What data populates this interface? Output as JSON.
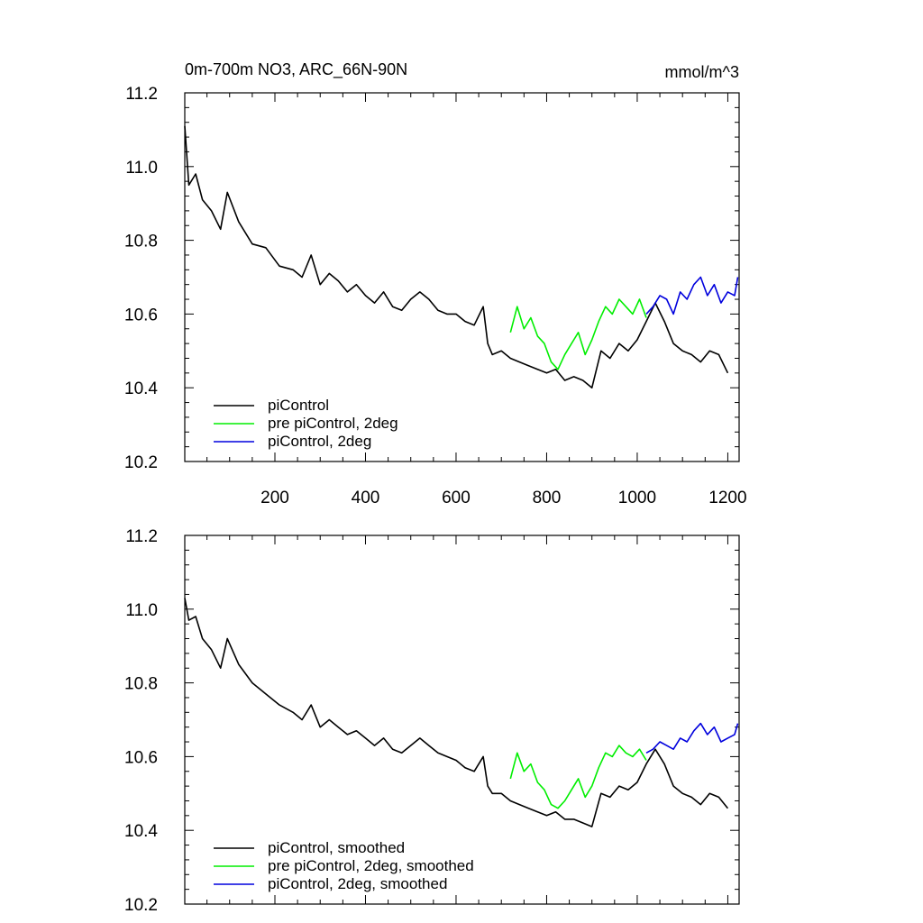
{
  "title_left": "0m-700m NO3, ARC_66N-90N",
  "title_right": "mmol/m^3",
  "colors": {
    "piControl": "#000000",
    "pre_piControl_2deg": "#00ee00",
    "piControl_2deg": "#0000dd",
    "frame": "#000000"
  },
  "chart_data": [
    {
      "type": "line",
      "title": "0m-700m NO3, ARC_66N-90N",
      "units": "mmol/m^3",
      "xlabel": "",
      "ylabel": "",
      "xlim": [
        1,
        1225
      ],
      "ylim": [
        10.2,
        11.2
      ],
      "x_ticks": [
        200,
        400,
        600,
        800,
        1000,
        1200
      ],
      "x_tick_labels": [
        "200",
        "400",
        "600",
        "800",
        "1000",
        "1200"
      ],
      "y_ticks": [
        10.2,
        10.4,
        10.6,
        10.8,
        11.0,
        11.2
      ],
      "y_tick_labels": [
        "10.2",
        "10.4",
        "10.6",
        "10.8",
        "11.0",
        "11.2"
      ],
      "grid": false,
      "legend_position": "bottom-left",
      "series": [
        {
          "name": "piControl",
          "color": "#000000",
          "x": [
            1,
            10,
            25,
            40,
            60,
            80,
            95,
            120,
            150,
            180,
            210,
            240,
            260,
            280,
            300,
            320,
            340,
            360,
            380,
            400,
            420,
            440,
            460,
            480,
            500,
            520,
            540,
            560,
            580,
            600,
            620,
            640,
            660,
            670,
            680,
            700,
            720,
            740,
            760,
            780,
            800,
            820,
            840,
            860,
            880,
            900,
            920,
            940,
            960,
            980,
            1000,
            1020,
            1040,
            1060,
            1080,
            1100,
            1120,
            1140,
            1160,
            1180,
            1200
          ],
          "values": [
            11.11,
            10.95,
            10.98,
            10.91,
            10.88,
            10.83,
            10.93,
            10.85,
            10.79,
            10.78,
            10.73,
            10.72,
            10.7,
            10.76,
            10.68,
            10.71,
            10.69,
            10.66,
            10.68,
            10.65,
            10.63,
            10.66,
            10.62,
            10.61,
            10.64,
            10.66,
            10.64,
            10.61,
            10.6,
            10.6,
            10.58,
            10.57,
            10.62,
            10.52,
            10.49,
            10.5,
            10.48,
            10.47,
            10.46,
            10.45,
            10.44,
            10.45,
            10.42,
            10.43,
            10.42,
            10.4,
            10.5,
            10.48,
            10.52,
            10.5,
            10.53,
            10.58,
            10.63,
            10.58,
            10.52,
            10.5,
            10.49,
            10.47,
            10.5,
            10.49,
            10.44
          ]
        },
        {
          "name": "pre piControl, 2deg",
          "color": "#00ee00",
          "x": [
            720,
            735,
            750,
            765,
            780,
            795,
            810,
            825,
            840,
            855,
            870,
            885,
            900,
            915,
            930,
            945,
            960,
            975,
            990,
            1005,
            1020
          ],
          "values": [
            10.55,
            10.62,
            10.56,
            10.59,
            10.54,
            10.52,
            10.47,
            10.45,
            10.49,
            10.52,
            10.55,
            10.49,
            10.53,
            10.58,
            10.62,
            10.6,
            10.64,
            10.62,
            10.6,
            10.64,
            10.59
          ]
        },
        {
          "name": "piControl, 2deg",
          "color": "#0000dd",
          "x": [
            1020,
            1035,
            1050,
            1065,
            1080,
            1095,
            1110,
            1125,
            1140,
            1155,
            1170,
            1185,
            1200,
            1215,
            1222
          ],
          "values": [
            10.6,
            10.62,
            10.65,
            10.64,
            10.6,
            10.66,
            10.64,
            10.68,
            10.7,
            10.65,
            10.68,
            10.63,
            10.66,
            10.65,
            10.7
          ]
        }
      ]
    },
    {
      "type": "line",
      "title": "",
      "xlabel": "",
      "ylabel": "",
      "xlim": [
        1,
        1225
      ],
      "ylim": [
        10.2,
        11.2
      ],
      "x_ticks": [
        200,
        400,
        600,
        800,
        1000,
        1200
      ],
      "x_tick_labels": [],
      "y_ticks": [
        10.2,
        10.4,
        10.6,
        10.8,
        11.0,
        11.2
      ],
      "y_tick_labels": [
        "10.2",
        "10.4",
        "10.6",
        "10.8",
        "11.0",
        "11.2"
      ],
      "grid": false,
      "legend_position": "bottom-left",
      "series": [
        {
          "name": "piControl, smoothed",
          "color": "#000000",
          "x": [
            1,
            10,
            25,
            40,
            60,
            80,
            95,
            120,
            150,
            180,
            210,
            240,
            260,
            280,
            300,
            320,
            340,
            360,
            380,
            400,
            420,
            440,
            460,
            480,
            500,
            520,
            540,
            560,
            580,
            600,
            620,
            640,
            660,
            670,
            680,
            700,
            720,
            740,
            760,
            780,
            800,
            820,
            840,
            860,
            880,
            900,
            920,
            940,
            960,
            980,
            1000,
            1020,
            1040,
            1060,
            1080,
            1100,
            1120,
            1140,
            1160,
            1180,
            1200
          ],
          "values": [
            11.03,
            10.97,
            10.98,
            10.92,
            10.89,
            10.84,
            10.92,
            10.85,
            10.8,
            10.77,
            10.74,
            10.72,
            10.7,
            10.74,
            10.68,
            10.7,
            10.68,
            10.66,
            10.67,
            10.65,
            10.63,
            10.65,
            10.62,
            10.61,
            10.63,
            10.65,
            10.63,
            10.61,
            10.6,
            10.59,
            10.57,
            10.56,
            10.6,
            10.52,
            10.5,
            10.5,
            10.48,
            10.47,
            10.46,
            10.45,
            10.44,
            10.45,
            10.43,
            10.43,
            10.42,
            10.41,
            10.5,
            10.49,
            10.52,
            10.51,
            10.53,
            10.58,
            10.62,
            10.58,
            10.52,
            10.5,
            10.49,
            10.47,
            10.5,
            10.49,
            10.46
          ]
        },
        {
          "name": "pre piControl, 2deg, smoothed",
          "color": "#00ee00",
          "x": [
            720,
            735,
            750,
            765,
            780,
            795,
            810,
            825,
            840,
            855,
            870,
            885,
            900,
            915,
            930,
            945,
            960,
            975,
            990,
            1005,
            1020
          ],
          "values": [
            10.54,
            10.61,
            10.56,
            10.58,
            10.53,
            10.51,
            10.47,
            10.46,
            10.48,
            10.51,
            10.54,
            10.49,
            10.52,
            10.57,
            10.61,
            10.6,
            10.63,
            10.61,
            10.6,
            10.62,
            10.59
          ]
        },
        {
          "name": "piControl, 2deg, smoothed",
          "color": "#0000dd",
          "x": [
            1020,
            1035,
            1050,
            1065,
            1080,
            1095,
            1110,
            1125,
            1140,
            1155,
            1170,
            1185,
            1200,
            1215,
            1222
          ],
          "values": [
            10.61,
            10.62,
            10.64,
            10.63,
            10.62,
            10.65,
            10.64,
            10.67,
            10.69,
            10.66,
            10.68,
            10.64,
            10.65,
            10.66,
            10.69
          ]
        }
      ]
    }
  ]
}
